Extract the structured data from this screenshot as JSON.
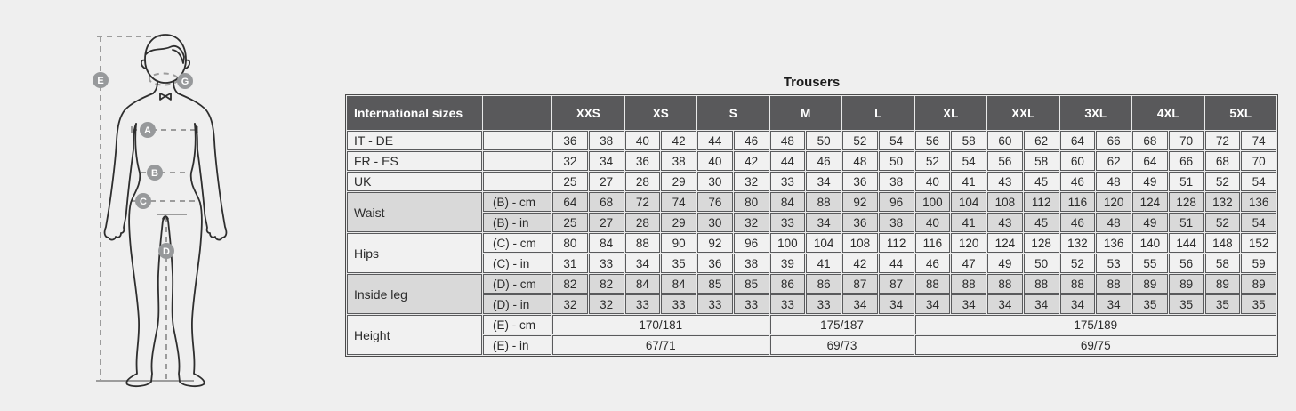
{
  "title": "Trousers",
  "colors": {
    "page_bg": "#efefef",
    "header_bg": "#59595b",
    "row_light": "#f1f1f1",
    "row_dark": "#d9d9d9",
    "border": "#595a5c",
    "measure_line": "#9c9c9c",
    "marker_fill": "#97999b",
    "body_outline": "#2e2e2e"
  },
  "figure": {
    "description": "male-body-measurement-diagram",
    "markers": [
      {
        "letter": "E"
      },
      {
        "letter": "G"
      },
      {
        "letter": "A"
      },
      {
        "letter": "B"
      },
      {
        "letter": "C"
      },
      {
        "letter": "D"
      }
    ]
  },
  "chart_data": {
    "type": "table",
    "title": "Trousers",
    "corner_label": "International sizes",
    "size_groups": [
      "XXS",
      "XS",
      "S",
      "M",
      "L",
      "XL",
      "XXL",
      "3XL",
      "4XL",
      "5XL"
    ],
    "columns_per_group": 2,
    "groups": [
      {
        "label": "IT - DE",
        "shade": "light",
        "rows": [
          {
            "unit": "",
            "values": [
              36,
              38,
              40,
              42,
              44,
              46,
              48,
              50,
              52,
              54,
              56,
              58,
              60,
              62,
              64,
              66,
              68,
              70,
              72,
              74
            ]
          }
        ]
      },
      {
        "label": "FR - ES",
        "shade": "light",
        "rows": [
          {
            "unit": "",
            "values": [
              32,
              34,
              36,
              38,
              40,
              42,
              44,
              46,
              48,
              50,
              52,
              54,
              56,
              58,
              60,
              62,
              64,
              66,
              68,
              70
            ]
          }
        ]
      },
      {
        "label": "UK",
        "shade": "light",
        "rows": [
          {
            "unit": "",
            "values": [
              25,
              27,
              28,
              29,
              30,
              32,
              33,
              34,
              36,
              38,
              40,
              41,
              43,
              45,
              46,
              48,
              49,
              51,
              52,
              54
            ]
          }
        ]
      },
      {
        "label": "Waist",
        "shade": "dark",
        "rows": [
          {
            "unit": "(B) - cm",
            "values": [
              64,
              68,
              72,
              74,
              76,
              80,
              84,
              88,
              92,
              96,
              100,
              104,
              108,
              112,
              116,
              120,
              124,
              128,
              132,
              136
            ]
          },
          {
            "unit": "(B) - in",
            "values": [
              25,
              27,
              28,
              29,
              30,
              32,
              33,
              34,
              36,
              38,
              40,
              41,
              43,
              45,
              46,
              48,
              49,
              51,
              52,
              54
            ]
          }
        ]
      },
      {
        "label": "Hips",
        "shade": "light",
        "rows": [
          {
            "unit": "(C) - cm",
            "values": [
              80,
              84,
              88,
              90,
              92,
              96,
              100,
              104,
              108,
              112,
              116,
              120,
              124,
              128,
              132,
              136,
              140,
              144,
              148,
              152
            ]
          },
          {
            "unit": "(C) - in",
            "values": [
              31,
              33,
              34,
              35,
              36,
              38,
              39,
              41,
              42,
              44,
              46,
              47,
              49,
              50,
              52,
              53,
              55,
              56,
              58,
              59
            ]
          }
        ]
      },
      {
        "label": "Inside leg",
        "shade": "dark",
        "rows": [
          {
            "unit": "(D) - cm",
            "values": [
              82,
              82,
              84,
              84,
              85,
              85,
              86,
              86,
              87,
              87,
              88,
              88,
              88,
              88,
              88,
              88,
              89,
              89,
              89,
              89
            ]
          },
          {
            "unit": "(D) - in",
            "values": [
              32,
              32,
              33,
              33,
              33,
              33,
              33,
              33,
              34,
              34,
              34,
              34,
              34,
              34,
              34,
              34,
              35,
              35,
              35,
              35
            ]
          }
        ]
      },
      {
        "label": "Height",
        "shade": "light",
        "rows": [
          {
            "unit": "(E) - cm",
            "spans": [
              {
                "text": "170/181",
                "cols": 6
              },
              {
                "text": "175/187",
                "cols": 4
              },
              {
                "text": "175/189",
                "cols": 10
              }
            ]
          },
          {
            "unit": "(E) - in",
            "spans": [
              {
                "text": "67/71",
                "cols": 6
              },
              {
                "text": "69/73",
                "cols": 4
              },
              {
                "text": "69/75",
                "cols": 10
              }
            ]
          }
        ]
      }
    ]
  }
}
